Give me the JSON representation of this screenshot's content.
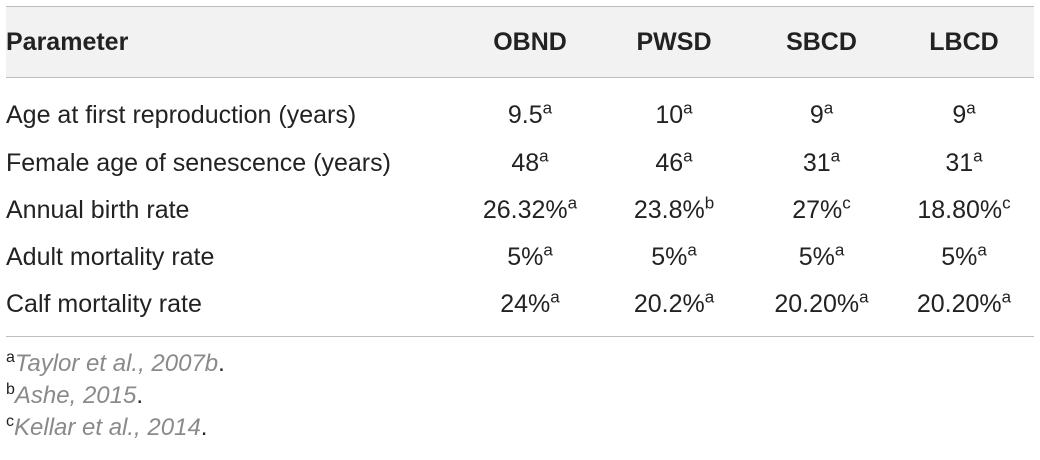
{
  "table": {
    "headers": [
      "Parameter",
      "OBND",
      "PWSD",
      "SBCD",
      "LBCD"
    ],
    "rows": [
      {
        "parameter": "Age at first reproduction (years)",
        "cells": [
          {
            "value": "9.5",
            "sup": "a"
          },
          {
            "value": "10",
            "sup": "a"
          },
          {
            "value": "9",
            "sup": "a"
          },
          {
            "value": "9",
            "sup": "a"
          }
        ]
      },
      {
        "parameter": "Female age of senescence (years)",
        "cells": [
          {
            "value": "48",
            "sup": "a"
          },
          {
            "value": "46",
            "sup": "a"
          },
          {
            "value": "31",
            "sup": "a"
          },
          {
            "value": "31",
            "sup": "a"
          }
        ]
      },
      {
        "parameter": "Annual birth rate",
        "cells": [
          {
            "value": "26.32%",
            "sup": "a"
          },
          {
            "value": "23.8%",
            "sup": "b"
          },
          {
            "value": "27%",
            "sup": "c"
          },
          {
            "value": "18.80%",
            "sup": "c"
          }
        ]
      },
      {
        "parameter": "Adult mortality rate",
        "cells": [
          {
            "value": "5%",
            "sup": "a"
          },
          {
            "value": "5%",
            "sup": "a"
          },
          {
            "value": "5%",
            "sup": "a"
          },
          {
            "value": "5%",
            "sup": "a"
          }
        ]
      },
      {
        "parameter": "Calf mortality rate",
        "cells": [
          {
            "value": "24%",
            "sup": "a"
          },
          {
            "value": "20.2%",
            "sup": "a"
          },
          {
            "value": "20.20%",
            "sup": "a"
          },
          {
            "value": "20.20%",
            "sup": "a"
          }
        ]
      }
    ]
  },
  "footnotes": [
    {
      "mark": "a",
      "text": "Taylor et al., 2007b",
      "end": "."
    },
    {
      "mark": "b",
      "text": "Ashe, 2015",
      "end": "."
    },
    {
      "mark": "c",
      "text": "Kellar et al., 2014",
      "end": "."
    }
  ],
  "colors": {
    "header_bg": "#f2f2f2",
    "rule": "#bdbdbd",
    "text": "#222222",
    "footnote_link": "#8a8a8a"
  }
}
